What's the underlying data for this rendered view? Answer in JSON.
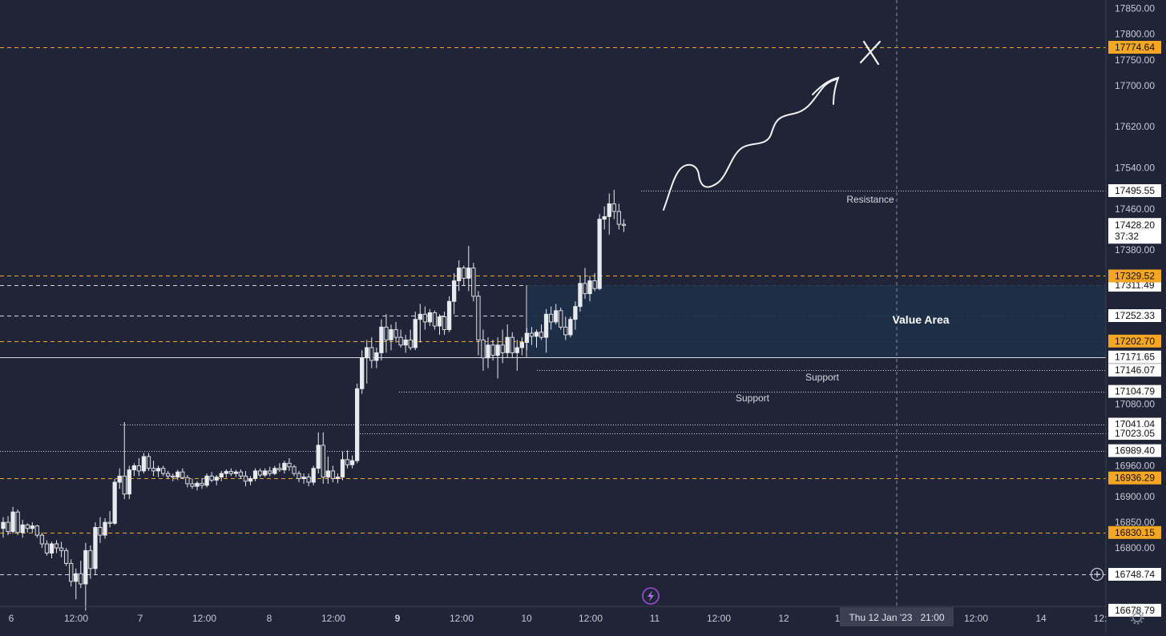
{
  "colors": {
    "background": "#1f2436",
    "grid_text": "#c7cad6",
    "orange": "#f5a623",
    "white_line": "#d6d8e0",
    "value_area": "#1e2f48",
    "candle": "#e9eaee",
    "badge_dark": "#111111",
    "badge_white": "#ffffff"
  },
  "chart_data": {
    "type": "candlestick",
    "symbol_interval": "hourly",
    "ylim": [
      16660,
      17880
    ],
    "price_axis_labels": [
      "17850.00",
      "17800.00",
      "17750.00",
      "17700.00",
      "17620.00",
      "17540.00",
      "17460.00",
      "17380.00",
      "17080.00",
      "16960.00",
      "16900.00",
      "16850.00",
      "16800.00"
    ],
    "price_axis_values": [
      17850,
      17800,
      17750,
      17700,
      17620,
      17540,
      17460,
      17380,
      17080,
      16960,
      16900,
      16850,
      16800
    ],
    "time_axis_labels": [
      "6",
      "12:00",
      "7",
      "12:00",
      "8",
      "12:00",
      "9",
      "12:00",
      "10",
      "12:00",
      "11",
      "12:00",
      "12",
      "1",
      "12:00",
      "14",
      "12:"
    ],
    "time_axis_bold_index": 6,
    "crosshair_label": "Thu 12 Jan '23   21:00",
    "current_price": "17428.20",
    "countdown": "37:32",
    "orange_levels": [
      {
        "label": "17774.64",
        "value": 17774.64
      },
      {
        "label": "17329.52",
        "value": 17329.52
      },
      {
        "label": "17202.70",
        "value": 17202.7
      },
      {
        "label": "16936.29",
        "value": 16936.29
      },
      {
        "label": "16830.15",
        "value": 16830.15
      }
    ],
    "white_levels": [
      {
        "label": "17495.55",
        "value": 17495.55,
        "style": "dotted",
        "from": 17495.55
      },
      {
        "label": "17311.49",
        "value": 17311.49,
        "style": "dashed"
      },
      {
        "label": "17252.33",
        "value": 17252.33,
        "style": "dashed"
      },
      {
        "label": "17171.65",
        "value": 17171.65,
        "style": "solid"
      },
      {
        "label": "17146.07",
        "value": 17146.07,
        "style": "dotted"
      },
      {
        "label": "17104.79",
        "value": 17104.79,
        "style": "dotted"
      },
      {
        "label": "17041.04",
        "value": 17041.04,
        "style": "dotted"
      },
      {
        "label": "17023.05",
        "value": 17023.05,
        "style": "dotted"
      },
      {
        "label": "16989.40",
        "value": 16989.4,
        "style": "dotted"
      },
      {
        "label": "16748.74",
        "value": 16748.74,
        "style": "dashed"
      },
      {
        "label": "16678.79",
        "value": 16678.79,
        "style": "none"
      }
    ],
    "annotations": {
      "resistance": "Resistance",
      "support_1": "Support",
      "support_2": "Support",
      "value_area": "Value Area"
    },
    "value_area": {
      "top": 17311.49,
      "bottom": 17171.65
    },
    "candles": [
      {
        "o": 16838,
        "h": 16860,
        "l": 16820,
        "c": 16850
      },
      {
        "o": 16850,
        "h": 16862,
        "l": 16825,
        "c": 16832
      },
      {
        "o": 16832,
        "h": 16880,
        "l": 16828,
        "c": 16870
      },
      {
        "o": 16870,
        "h": 16875,
        "l": 16825,
        "c": 16830
      },
      {
        "o": 16830,
        "h": 16855,
        "l": 16820,
        "c": 16845
      },
      {
        "o": 16845,
        "h": 16848,
        "l": 16830,
        "c": 16838
      },
      {
        "o": 16838,
        "h": 16850,
        "l": 16830,
        "c": 16843
      },
      {
        "o": 16843,
        "h": 16845,
        "l": 16820,
        "c": 16825
      },
      {
        "o": 16825,
        "h": 16830,
        "l": 16800,
        "c": 16808
      },
      {
        "o": 16808,
        "h": 16815,
        "l": 16785,
        "c": 16790
      },
      {
        "o": 16790,
        "h": 16812,
        "l": 16780,
        "c": 16808
      },
      {
        "o": 16808,
        "h": 16815,
        "l": 16790,
        "c": 16800
      },
      {
        "o": 16800,
        "h": 16812,
        "l": 16782,
        "c": 16795
      },
      {
        "o": 16795,
        "h": 16800,
        "l": 16765,
        "c": 16770
      },
      {
        "o": 16770,
        "h": 16778,
        "l": 16725,
        "c": 16735
      },
      {
        "o": 16735,
        "h": 16760,
        "l": 16700,
        "c": 16750
      },
      {
        "o": 16750,
        "h": 16775,
        "l": 16722,
        "c": 16730
      },
      {
        "o": 16730,
        "h": 16810,
        "l": 16678,
        "c": 16795
      },
      {
        "o": 16795,
        "h": 16805,
        "l": 16740,
        "c": 16760
      },
      {
        "o": 16760,
        "h": 16850,
        "l": 16748,
        "c": 16840
      },
      {
        "o": 16840,
        "h": 16860,
        "l": 16810,
        "c": 16825
      },
      {
        "o": 16825,
        "h": 16858,
        "l": 16818,
        "c": 16850
      },
      {
        "o": 16850,
        "h": 16872,
        "l": 16840,
        "c": 16848
      },
      {
        "o": 16848,
        "h": 16935,
        "l": 16845,
        "c": 16928
      },
      {
        "o": 16928,
        "h": 16955,
        "l": 16915,
        "c": 16940
      },
      {
        "o": 16940,
        "h": 17045,
        "l": 16895,
        "c": 16905
      },
      {
        "o": 16905,
        "h": 16960,
        "l": 16895,
        "c": 16952
      },
      {
        "o": 16952,
        "h": 16965,
        "l": 16940,
        "c": 16960
      },
      {
        "o": 16960,
        "h": 16975,
        "l": 16940,
        "c": 16950
      },
      {
        "o": 16950,
        "h": 16985,
        "l": 16945,
        "c": 16978
      },
      {
        "o": 16978,
        "h": 16985,
        "l": 16950,
        "c": 16955
      },
      {
        "o": 16955,
        "h": 16970,
        "l": 16940,
        "c": 16950
      },
      {
        "o": 16950,
        "h": 16960,
        "l": 16938,
        "c": 16955
      },
      {
        "o": 16955,
        "h": 16960,
        "l": 16940,
        "c": 16945
      },
      {
        "o": 16945,
        "h": 16950,
        "l": 16935,
        "c": 16940
      },
      {
        "o": 16940,
        "h": 16945,
        "l": 16930,
        "c": 16938
      },
      {
        "o": 16938,
        "h": 16952,
        "l": 16932,
        "c": 16948
      },
      {
        "o": 16948,
        "h": 16955,
        "l": 16935,
        "c": 16937
      },
      {
        "o": 16937,
        "h": 16942,
        "l": 16918,
        "c": 16925
      },
      {
        "o": 16925,
        "h": 16935,
        "l": 16915,
        "c": 16920
      },
      {
        "o": 16920,
        "h": 16930,
        "l": 16912,
        "c": 16926
      },
      {
        "o": 16926,
        "h": 16936,
        "l": 16915,
        "c": 16922
      },
      {
        "o": 16922,
        "h": 16945,
        "l": 16918,
        "c": 16940
      },
      {
        "o": 16940,
        "h": 16948,
        "l": 16928,
        "c": 16932
      },
      {
        "o": 16932,
        "h": 16942,
        "l": 16922,
        "c": 16938
      },
      {
        "o": 16938,
        "h": 16950,
        "l": 16930,
        "c": 16945
      },
      {
        "o": 16945,
        "h": 16953,
        "l": 16937,
        "c": 16949
      },
      {
        "o": 16949,
        "h": 16955,
        "l": 16940,
        "c": 16945
      },
      {
        "o": 16945,
        "h": 16952,
        "l": 16938,
        "c": 16948
      },
      {
        "o": 16948,
        "h": 16953,
        "l": 16935,
        "c": 16940
      },
      {
        "o": 16940,
        "h": 16950,
        "l": 16920,
        "c": 16930
      },
      {
        "o": 16930,
        "h": 16940,
        "l": 16922,
        "c": 16935
      },
      {
        "o": 16935,
        "h": 16955,
        "l": 16930,
        "c": 16950
      },
      {
        "o": 16950,
        "h": 16955,
        "l": 16938,
        "c": 16942
      },
      {
        "o": 16942,
        "h": 16955,
        "l": 16938,
        "c": 16950
      },
      {
        "o": 16950,
        "h": 16958,
        "l": 16940,
        "c": 16945
      },
      {
        "o": 16945,
        "h": 16960,
        "l": 16942,
        "c": 16955
      },
      {
        "o": 16955,
        "h": 16965,
        "l": 16948,
        "c": 16952
      },
      {
        "o": 16952,
        "h": 16970,
        "l": 16945,
        "c": 16965
      },
      {
        "o": 16965,
        "h": 16975,
        "l": 16950,
        "c": 16958
      },
      {
        "o": 16958,
        "h": 16962,
        "l": 16940,
        "c": 16945
      },
      {
        "o": 16945,
        "h": 16950,
        "l": 16928,
        "c": 16935
      },
      {
        "o": 16935,
        "h": 16945,
        "l": 16925,
        "c": 16938
      },
      {
        "o": 16938,
        "h": 16945,
        "l": 16920,
        "c": 16928
      },
      {
        "o": 16928,
        "h": 16960,
        "l": 16922,
        "c": 16955
      },
      {
        "o": 16955,
        "h": 17025,
        "l": 16945,
        "c": 17000
      },
      {
        "o": 17000,
        "h": 17025,
        "l": 16925,
        "c": 16938
      },
      {
        "o": 16938,
        "h": 16978,
        "l": 16925,
        "c": 16950
      },
      {
        "o": 16950,
        "h": 16960,
        "l": 16928,
        "c": 16935
      },
      {
        "o": 16935,
        "h": 16945,
        "l": 16926,
        "c": 16938
      },
      {
        "o": 16938,
        "h": 16988,
        "l": 16932,
        "c": 16972
      },
      {
        "o": 16972,
        "h": 16990,
        "l": 16955,
        "c": 16962
      },
      {
        "o": 16962,
        "h": 16980,
        "l": 16955,
        "c": 16970
      },
      {
        "o": 16970,
        "h": 17120,
        "l": 16965,
        "c": 17110
      },
      {
        "o": 17110,
        "h": 17185,
        "l": 17100,
        "c": 17170
      },
      {
        "o": 17170,
        "h": 17205,
        "l": 17120,
        "c": 17190
      },
      {
        "o": 17190,
        "h": 17210,
        "l": 17150,
        "c": 17165
      },
      {
        "o": 17165,
        "h": 17190,
        "l": 17150,
        "c": 17180
      },
      {
        "o": 17180,
        "h": 17245,
        "l": 17165,
        "c": 17230
      },
      {
        "o": 17230,
        "h": 17255,
        "l": 17180,
        "c": 17205
      },
      {
        "o": 17205,
        "h": 17235,
        "l": 17185,
        "c": 17225
      },
      {
        "o": 17225,
        "h": 17240,
        "l": 17200,
        "c": 17210
      },
      {
        "o": 17210,
        "h": 17225,
        "l": 17190,
        "c": 17195
      },
      {
        "o": 17195,
        "h": 17215,
        "l": 17180,
        "c": 17205
      },
      {
        "o": 17205,
        "h": 17225,
        "l": 17185,
        "c": 17190
      },
      {
        "o": 17190,
        "h": 17260,
        "l": 17185,
        "c": 17245
      },
      {
        "o": 17245,
        "h": 17275,
        "l": 17200,
        "c": 17255
      },
      {
        "o": 17255,
        "h": 17270,
        "l": 17225,
        "c": 17240
      },
      {
        "o": 17240,
        "h": 17265,
        "l": 17232,
        "c": 17258
      },
      {
        "o": 17258,
        "h": 17262,
        "l": 17225,
        "c": 17232
      },
      {
        "o": 17232,
        "h": 17255,
        "l": 17215,
        "c": 17250
      },
      {
        "o": 17250,
        "h": 17260,
        "l": 17215,
        "c": 17225
      },
      {
        "o": 17225,
        "h": 17290,
        "l": 17220,
        "c": 17280
      },
      {
        "o": 17280,
        "h": 17335,
        "l": 17255,
        "c": 17320
      },
      {
        "o": 17320,
        "h": 17360,
        "l": 17300,
        "c": 17345
      },
      {
        "o": 17345,
        "h": 17350,
        "l": 17310,
        "c": 17325
      },
      {
        "o": 17325,
        "h": 17388,
        "l": 17300,
        "c": 17345
      },
      {
        "o": 17345,
        "h": 17355,
        "l": 17280,
        "c": 17290
      },
      {
        "o": 17290,
        "h": 17300,
        "l": 17175,
        "c": 17205
      },
      {
        "o": 17205,
        "h": 17225,
        "l": 17145,
        "c": 17170
      },
      {
        "o": 17170,
        "h": 17210,
        "l": 17150,
        "c": 17195
      },
      {
        "o": 17195,
        "h": 17205,
        "l": 17165,
        "c": 17175
      },
      {
        "o": 17175,
        "h": 17210,
        "l": 17130,
        "c": 17195
      },
      {
        "o": 17195,
        "h": 17225,
        "l": 17160,
        "c": 17180
      },
      {
        "o": 17180,
        "h": 17235,
        "l": 17170,
        "c": 17210
      },
      {
        "o": 17210,
        "h": 17220,
        "l": 17170,
        "c": 17180
      },
      {
        "o": 17180,
        "h": 17205,
        "l": 17145,
        "c": 17190
      },
      {
        "o": 17190,
        "h": 17210,
        "l": 17175,
        "c": 17200
      },
      {
        "o": 17200,
        "h": 17228,
        "l": 17185,
        "c": 17218
      },
      {
        "o": 17218,
        "h": 17230,
        "l": 17195,
        "c": 17212
      },
      {
        "o": 17212,
        "h": 17225,
        "l": 17190,
        "c": 17220
      },
      {
        "o": 17220,
        "h": 17235,
        "l": 17205,
        "c": 17210
      },
      {
        "o": 17210,
        "h": 17265,
        "l": 17180,
        "c": 17255
      },
      {
        "o": 17255,
        "h": 17270,
        "l": 17225,
        "c": 17240
      },
      {
        "o": 17240,
        "h": 17275,
        "l": 17235,
        "c": 17262
      },
      {
        "o": 17262,
        "h": 17268,
        "l": 17225,
        "c": 17230
      },
      {
        "o": 17230,
        "h": 17250,
        "l": 17205,
        "c": 17215
      },
      {
        "o": 17215,
        "h": 17250,
        "l": 17210,
        "c": 17245
      },
      {
        "o": 17245,
        "h": 17280,
        "l": 17225,
        "c": 17270
      },
      {
        "o": 17270,
        "h": 17330,
        "l": 17260,
        "c": 17315
      },
      {
        "o": 17315,
        "h": 17345,
        "l": 17285,
        "c": 17295
      },
      {
        "o": 17295,
        "h": 17330,
        "l": 17280,
        "c": 17320
      },
      {
        "o": 17320,
        "h": 17335,
        "l": 17300,
        "c": 17305
      },
      {
        "o": 17305,
        "h": 17450,
        "l": 17302,
        "c": 17440
      },
      {
        "o": 17440,
        "h": 17465,
        "l": 17420,
        "c": 17445
      },
      {
        "o": 17445,
        "h": 17490,
        "l": 17410,
        "c": 17470
      },
      {
        "o": 17470,
        "h": 17497,
        "l": 17440,
        "c": 17455
      },
      {
        "o": 17455,
        "h": 17470,
        "l": 17420,
        "c": 17430
      },
      {
        "o": 17430,
        "h": 17440,
        "l": 17415,
        "c": 17428
      }
    ]
  }
}
